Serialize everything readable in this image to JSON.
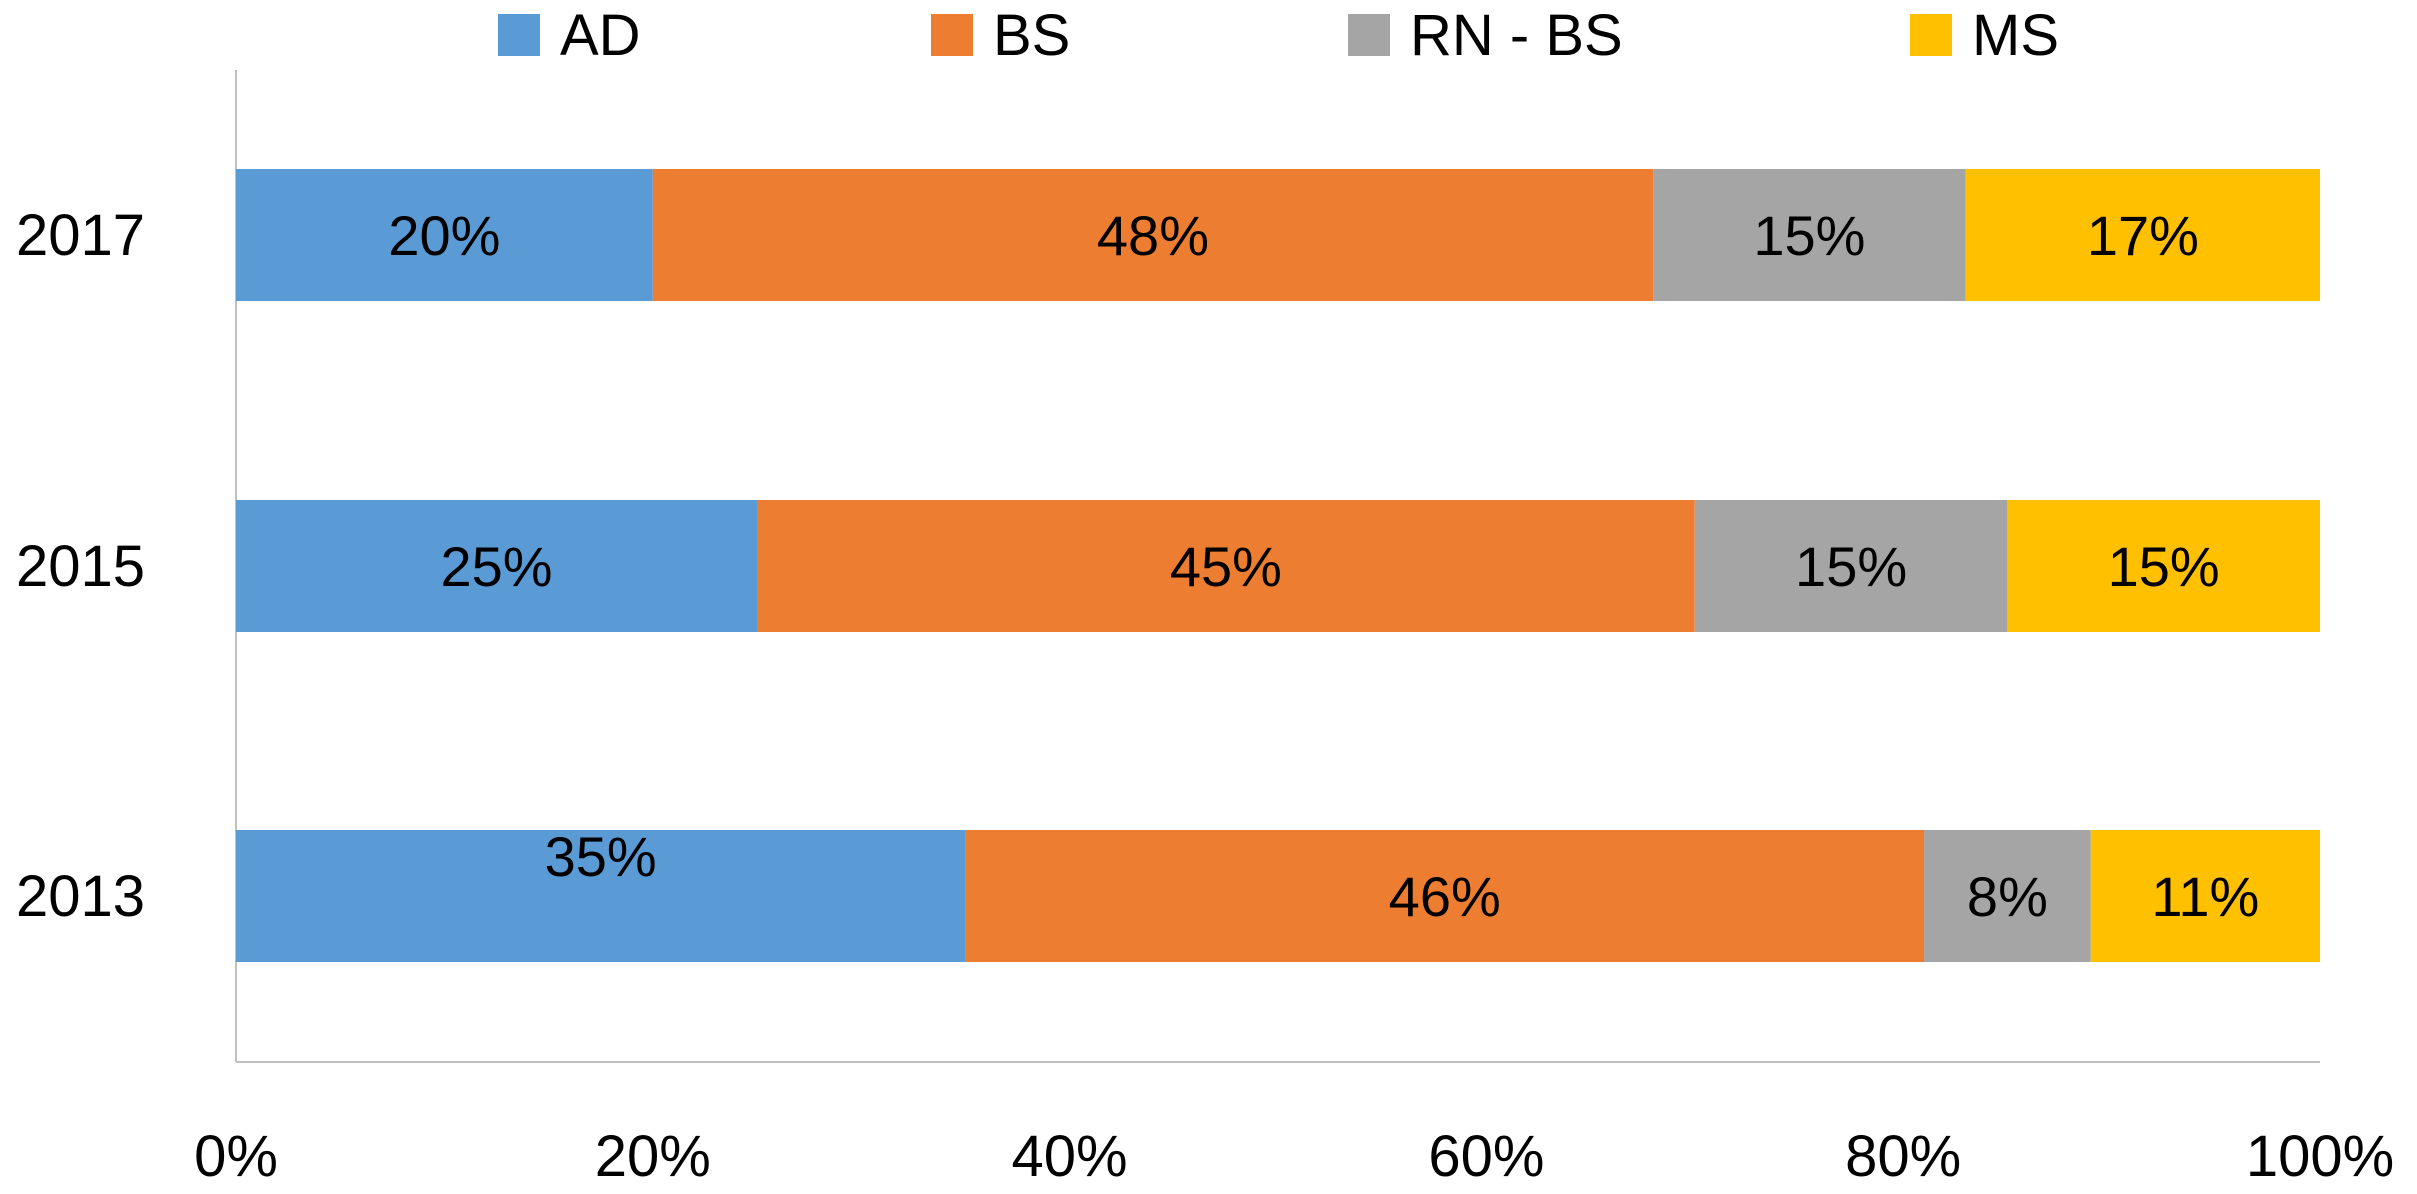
{
  "chart_data": {
    "type": "bar",
    "orientation": "horizontal",
    "stacked": "percent",
    "title": "",
    "xlabel": "",
    "ylabel": "",
    "categories": [
      "2013",
      "2015",
      "2017"
    ],
    "series": [
      {
        "name": "AD",
        "color": "#5B9BD5",
        "values": [
          35,
          25,
          20
        ],
        "labels": [
          "35%",
          "25%",
          "20%"
        ]
      },
      {
        "name": "BS",
        "color": "#ED7D31",
        "values": [
          46,
          45,
          48
        ],
        "labels": [
          "46%",
          "45%",
          "48%"
        ]
      },
      {
        "name": "RN - BS",
        "color": "#A5A5A5",
        "values": [
          8,
          15,
          15
        ],
        "labels": [
          "8%",
          "15%",
          "15%"
        ]
      },
      {
        "name": "MS",
        "color": "#FFC000",
        "values": [
          11,
          15,
          17
        ],
        "labels": [
          "11%",
          "15%",
          "17%"
        ]
      }
    ],
    "xlim": [
      0,
      100
    ],
    "xticks": [
      0,
      20,
      40,
      60,
      80,
      100
    ],
    "xtick_labels": [
      "0%",
      "20%",
      "40%",
      "60%",
      "80%",
      "100%"
    ],
    "grid": false,
    "legend_position": "top"
  }
}
